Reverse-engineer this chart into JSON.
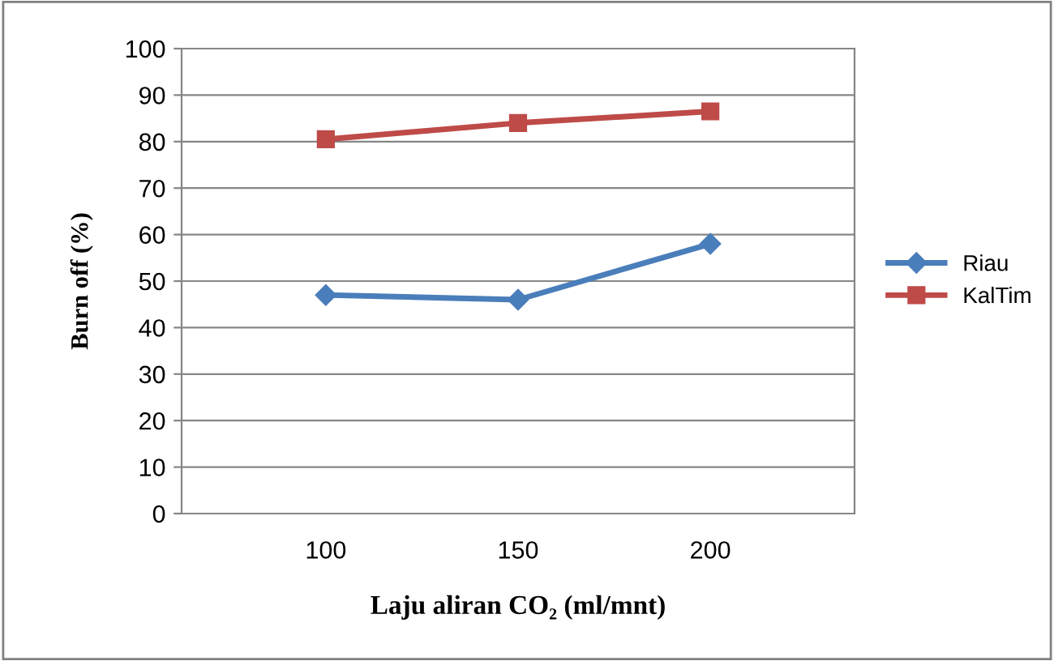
{
  "chart_data": {
    "type": "line",
    "categories": [
      "100",
      "150",
      "200"
    ],
    "series": [
      {
        "name": "Riau",
        "color": "#4a7ebb",
        "values": [
          47,
          46,
          58
        ],
        "marker": "diamond"
      },
      {
        "name": "KalTim",
        "color": "#be4b48",
        "values": [
          80.5,
          84,
          86.5
        ],
        "marker": "square"
      }
    ],
    "xlabel": "Laju aliran CO₂ (ml/mnt)",
    "ylabel": "Burn off (%)",
    "ylim": [
      0,
      100
    ],
    "yticks": [
      0,
      10,
      20,
      30,
      40,
      50,
      60,
      70,
      80,
      90,
      100
    ],
    "grid": "y",
    "legend": "right",
    "line_style": "solid"
  }
}
